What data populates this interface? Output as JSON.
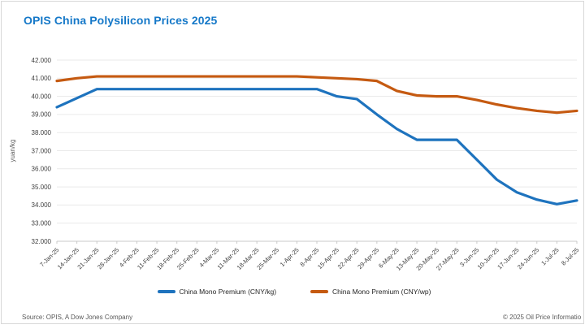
{
  "title": "OPIS China Polysilicon Prices 2025",
  "colors": {
    "title_blue": "#1578c8",
    "line_kg": "#1e73be",
    "line_wp": "#c55a11",
    "grid": "#eaeaea",
    "axis_line": "#c9c9c9",
    "axis_text": "#404040",
    "muted_text": "#595959"
  },
  "chart_data": {
    "type": "line",
    "title": "OPIS China Polysilicon Prices 2025",
    "xlabel": "",
    "ylabel": "yuan/kg",
    "ylim": [
      32,
      42
    ],
    "y_tick_step": 1,
    "y_tick_labels": [
      "32.000",
      "33.000",
      "34.000",
      "35.000",
      "36.000",
      "37.000",
      "38.000",
      "39.000",
      "40.000",
      "41.000",
      "42.000"
    ],
    "grid": "horizontal",
    "legend_position": "bottom",
    "categories": [
      "7-Jan-25",
      "14-Jan-25",
      "21-Jan-25",
      "28-Jan-25",
      "4-Feb-25",
      "11-Feb-25",
      "18-Feb-25",
      "25-Feb-25",
      "4-Mar-25",
      "11-Mar-25",
      "18-Mar-25",
      "25-Mar-25",
      "1-Apr-25",
      "8-Apr-25",
      "15-Apr-25",
      "22-Apr-25",
      "29-Apr-25",
      "6-May-25",
      "13-May-25",
      "20-May-25",
      "27-May-25",
      "3-Jun-25",
      "10-Jun-25",
      "17-Jun-25",
      "24-Jun-25",
      "1-Jul-25",
      "8-Jul-25"
    ],
    "series": [
      {
        "name": "China Mono Premium (CNY/kg)",
        "color": "#1e73be",
        "values": [
          39.4,
          39.9,
          40.4,
          40.4,
          40.4,
          40.4,
          40.4,
          40.4,
          40.4,
          40.4,
          40.4,
          40.4,
          40.4,
          40.4,
          40.0,
          39.85,
          39.0,
          38.2,
          37.6,
          37.6,
          37.6,
          36.5,
          35.4,
          34.7,
          34.3,
          34.05,
          34.25
        ]
      },
      {
        "name": "China Mono Premium (CNY/wp)",
        "color": "#c55a11",
        "values": [
          40.85,
          41.0,
          41.1,
          41.1,
          41.1,
          41.1,
          41.1,
          41.1,
          41.1,
          41.1,
          41.1,
          41.1,
          41.1,
          41.05,
          41.0,
          40.95,
          40.85,
          40.3,
          40.05,
          40.0,
          40.0,
          39.8,
          39.55,
          39.35,
          39.2,
          39.1,
          39.2
        ]
      }
    ]
  },
  "footer": {
    "source": "Source: OPIS, A Dow Jones Company",
    "copyright": "© 2025 Oil Price Informatio"
  }
}
